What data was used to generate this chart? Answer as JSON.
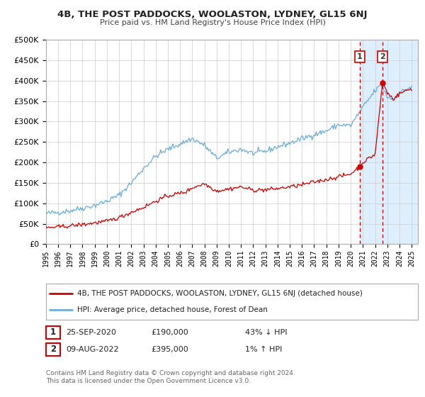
{
  "title": "4B, THE POST PADDOCKS, WOOLASTON, LYDNEY, GL15 6NJ",
  "subtitle": "Price paid vs. HM Land Registry's House Price Index (HPI)",
  "legend_line1": "4B, THE POST PADDOCKS, WOOLASTON, LYDNEY, GL15 6NJ (detached house)",
  "legend_line2": "HPI: Average price, detached house, Forest of Dean",
  "annotation1_label": "1",
  "annotation1_date": "25-SEP-2020",
  "annotation1_price": "£190,000",
  "annotation1_hpi": "43% ↓ HPI",
  "annotation2_label": "2",
  "annotation2_date": "09-AUG-2022",
  "annotation2_price": "£395,000",
  "annotation2_hpi": "1% ↑ HPI",
  "footer1": "Contains HM Land Registry data © Crown copyright and database right 2024.",
  "footer2": "This data is licensed under the Open Government Licence v3.0.",
  "sale1_date_num": 2020.74,
  "sale1_price": 190000,
  "sale2_date_num": 2022.61,
  "sale2_price": 395000,
  "hpi_color": "#6baed6",
  "price_color": "#cc0000",
  "highlight_color": "#ddeeff",
  "ylim": [
    0,
    500000
  ],
  "xlim_start": 1995.0,
  "xlim_end": 2025.5
}
